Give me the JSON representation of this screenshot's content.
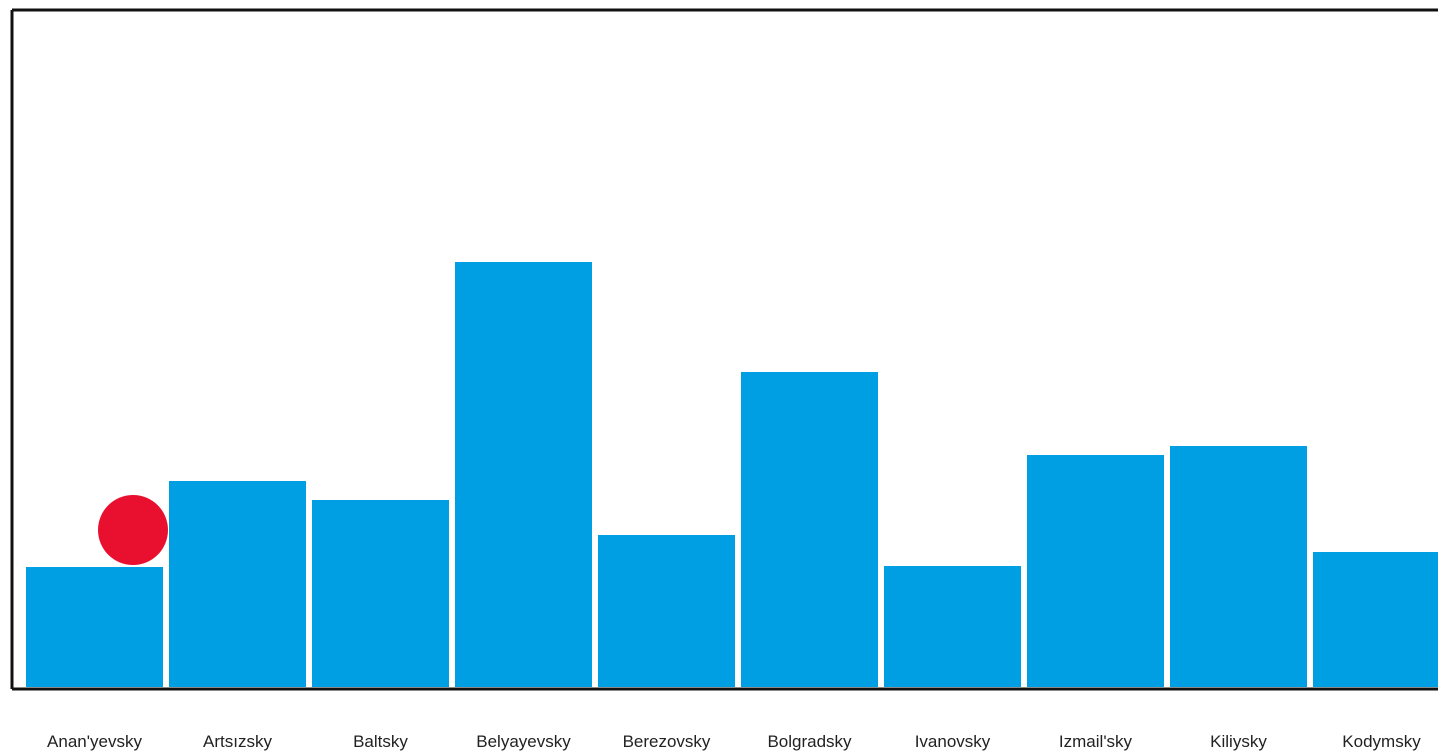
{
  "chart_data": {
    "type": "bar",
    "categories": [
      "Anan'yevsky",
      "Artsızsky",
      "Baltsky",
      "Belyayevsky",
      "Berezovsky",
      "Bolgradsky",
      "Ivanovsky",
      "Izmail'sky",
      "Kiliysky",
      "Kodymsky"
    ],
    "values": [
      120,
      206,
      187,
      425,
      152,
      315,
      121,
      232,
      241,
      135
    ],
    "ylim": [
      0,
      675
    ],
    "grid": false,
    "bar_color": "#009ee3",
    "marker": {
      "category": "Anan'yevsky",
      "value": 155,
      "color": "#e8102e",
      "shape": "circle"
    }
  }
}
